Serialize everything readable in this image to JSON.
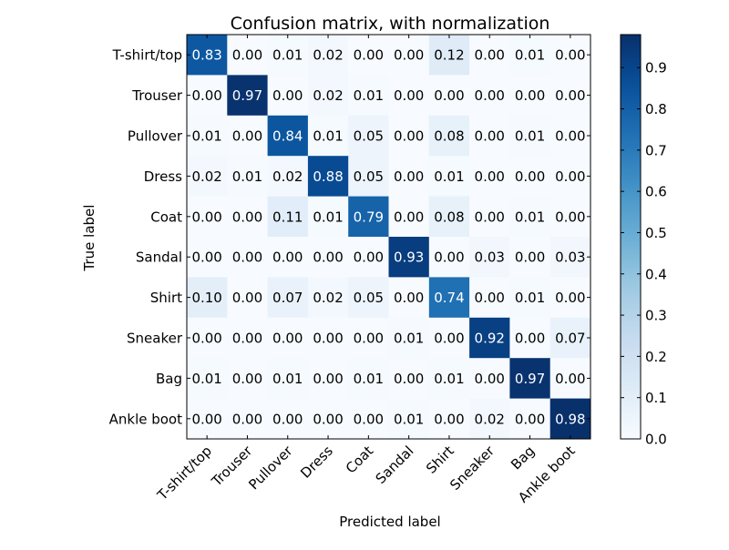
{
  "chart_data": {
    "type": "heatmap",
    "title": "Confusion matrix, with normalization",
    "xlabel": "Predicted label",
    "ylabel": "True label",
    "x_categories": [
      "T-shirt/top",
      "Trouser",
      "Pullover",
      "Dress",
      "Coat",
      "Sandal",
      "Shirt",
      "Sneaker",
      "Bag",
      "Ankle boot"
    ],
    "y_categories": [
      "T-shirt/top",
      "Trouser",
      "Pullover",
      "Dress",
      "Coat",
      "Sandal",
      "Shirt",
      "Sneaker",
      "Bag",
      "Ankle boot"
    ],
    "values": [
      [
        0.83,
        0.0,
        0.01,
        0.02,
        0.0,
        0.0,
        0.12,
        0.0,
        0.01,
        0.0
      ],
      [
        0.0,
        0.97,
        0.0,
        0.02,
        0.01,
        0.0,
        0.0,
        0.0,
        0.0,
        0.0
      ],
      [
        0.01,
        0.0,
        0.84,
        0.01,
        0.05,
        0.0,
        0.08,
        0.0,
        0.01,
        0.0
      ],
      [
        0.02,
        0.01,
        0.02,
        0.88,
        0.05,
        0.0,
        0.01,
        0.0,
        0.0,
        0.0
      ],
      [
        0.0,
        0.0,
        0.11,
        0.01,
        0.79,
        0.0,
        0.08,
        0.0,
        0.01,
        0.0
      ],
      [
        0.0,
        0.0,
        0.0,
        0.0,
        0.0,
        0.93,
        0.0,
        0.03,
        0.0,
        0.03
      ],
      [
        0.1,
        0.0,
        0.07,
        0.02,
        0.05,
        0.0,
        0.74,
        0.0,
        0.01,
        0.0
      ],
      [
        0.0,
        0.0,
        0.0,
        0.0,
        0.0,
        0.01,
        0.0,
        0.92,
        0.0,
        0.07
      ],
      [
        0.01,
        0.0,
        0.01,
        0.0,
        0.01,
        0.0,
        0.01,
        0.0,
        0.97,
        0.0
      ],
      [
        0.0,
        0.0,
        0.0,
        0.0,
        0.0,
        0.01,
        0.0,
        0.02,
        0.0,
        0.98
      ]
    ],
    "value_format": "2 decimals",
    "colormap": "Blues",
    "colorbar": {
      "range": [
        0.0,
        0.98
      ],
      "ticks": [
        0.0,
        0.1,
        0.2,
        0.3,
        0.4,
        0.5,
        0.6,
        0.7,
        0.8,
        0.9
      ],
      "tick_labels": [
        "0.0",
        "0.1",
        "0.2",
        "0.3",
        "0.4",
        "0.5",
        "0.6",
        "0.7",
        "0.8",
        "0.9"
      ]
    },
    "grid": false,
    "colors": {
      "low": "#f7fbff",
      "high": "#08306b",
      "text_dark": "#000000",
      "text_light": "#ffffff"
    }
  }
}
